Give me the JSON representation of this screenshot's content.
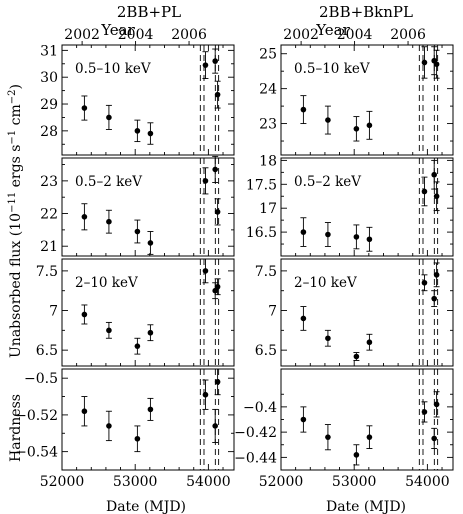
{
  "figure": {
    "column_titles": [
      "2BB+PL",
      "2BB+BknPL"
    ],
    "top_axis_label": "Year",
    "year_ticks": [
      2002,
      2004,
      2006
    ],
    "row_ylabels": [
      "Unabsorbed flux (10",
      "−11",
      " ergs s",
      "−1",
      " cm",
      "−2",
      ")",
      "Hardness"
    ],
    "xlabel": "Date (MJD)",
    "x_ticks": [
      52000,
      53000,
      54000
    ],
    "xlim": [
      52000,
      54350
    ],
    "vline_dates": [
      53890,
      53940,
      54095,
      54140
    ]
  },
  "chart_data": [
    {
      "type": "scatter",
      "column": "2BB+PL",
      "label": "0.5–10 keV",
      "ylim": [
        27.1,
        31.2
      ],
      "yticks": [
        28,
        29,
        30,
        31
      ],
      "x": [
        52306,
        52641,
        53030,
        53208,
        53960,
        54093,
        54126
      ],
      "y": [
        28.85,
        28.5,
        28.0,
        27.9,
        30.45,
        30.6,
        29.35
      ],
      "err": [
        0.45,
        0.45,
        0.4,
        0.4,
        0.5,
        0.45,
        0.5
      ]
    },
    {
      "type": "scatter",
      "column": "2BB+BknPL",
      "label": "0.5–10 keV",
      "ylim": [
        22.1,
        25.25
      ],
      "yticks": [
        23,
        24,
        25
      ],
      "x": [
        52306,
        52641,
        53030,
        53208,
        53960,
        54093,
        54126
      ],
      "y": [
        23.4,
        23.1,
        22.85,
        22.95,
        24.75,
        24.8,
        24.7
      ],
      "err": [
        0.4,
        0.4,
        0.35,
        0.4,
        0.45,
        0.4,
        0.4
      ]
    },
    {
      "type": "scatter",
      "column": "2BB+PL",
      "label": "0.5–2 keV",
      "ylim": [
        20.7,
        23.7
      ],
      "yticks": [
        21,
        22,
        23
      ],
      "x": [
        52306,
        52641,
        53030,
        53208,
        53960,
        54093,
        54126
      ],
      "y": [
        21.9,
        21.75,
        21.45,
        21.1,
        23.0,
        23.35,
        22.05
      ],
      "err": [
        0.4,
        0.35,
        0.35,
        0.35,
        0.4,
        0.4,
        0.4
      ]
    },
    {
      "type": "scatter",
      "column": "2BB+BknPL",
      "label": "0.5–2 keV",
      "ylim": [
        16.0,
        18.05
      ],
      "yticks": [
        16.5,
        17,
        17.5,
        18
      ],
      "x": [
        52306,
        52641,
        53030,
        53208,
        53960,
        54093,
        54126
      ],
      "y": [
        16.5,
        16.45,
        16.4,
        16.35,
        17.35,
        17.7,
        17.25
      ],
      "err": [
        0.3,
        0.25,
        0.25,
        0.25,
        0.3,
        0.3,
        0.3
      ]
    },
    {
      "type": "scatter",
      "column": "2BB+PL",
      "label": "2–10 keV",
      "ylim": [
        6.3,
        7.65
      ],
      "yticks": [
        6.5,
        7,
        7.5
      ],
      "x": [
        52306,
        52641,
        53030,
        53208,
        53960,
        54093,
        54126
      ],
      "y": [
        6.95,
        6.75,
        6.55,
        6.72,
        7.5,
        7.25,
        7.3
      ],
      "err": [
        0.12,
        0.1,
        0.1,
        0.1,
        0.15,
        0.1,
        0.1
      ]
    },
    {
      "type": "scatter",
      "column": "2BB+BknPL",
      "label": "2–10 keV",
      "ylim": [
        6.3,
        7.65
      ],
      "yticks": [
        6.5,
        7,
        7.5
      ],
      "x": [
        52306,
        52641,
        53030,
        53208,
        53960,
        54093,
        54126
      ],
      "y": [
        6.9,
        6.65,
        6.42,
        6.6,
        7.35,
        7.15,
        7.45
      ],
      "err": [
        0.15,
        0.1,
        0.05,
        0.1,
        0.1,
        0.1,
        0.15
      ]
    },
    {
      "type": "scatter",
      "column": "2BB+PL",
      "label": "",
      "ylim": [
        -0.55,
        -0.495
      ],
      "yticks": [
        -0.5,
        -0.52,
        -0.54
      ],
      "x": [
        52306,
        52641,
        53030,
        53208,
        53960,
        54093,
        54126
      ],
      "y": [
        -0.518,
        -0.526,
        -0.533,
        -0.517,
        -0.509,
        -0.526,
        -0.502
      ],
      "err": [
        0.008,
        0.008,
        0.007,
        0.006,
        0.008,
        0.009,
        0.007
      ]
    },
    {
      "type": "scatter",
      "column": "2BB+BknPL",
      "label": "",
      "ylim": [
        -0.45,
        -0.37
      ],
      "yticks": [
        -0.4,
        -0.42,
        -0.44
      ],
      "x": [
        52306,
        52641,
        53030,
        53208,
        53960,
        54093,
        54126
      ],
      "y": [
        -0.41,
        -0.424,
        -0.438,
        -0.424,
        -0.404,
        -0.425,
        -0.398
      ],
      "err": [
        0.01,
        0.01,
        0.008,
        0.009,
        0.008,
        0.008,
        0.01
      ]
    }
  ]
}
